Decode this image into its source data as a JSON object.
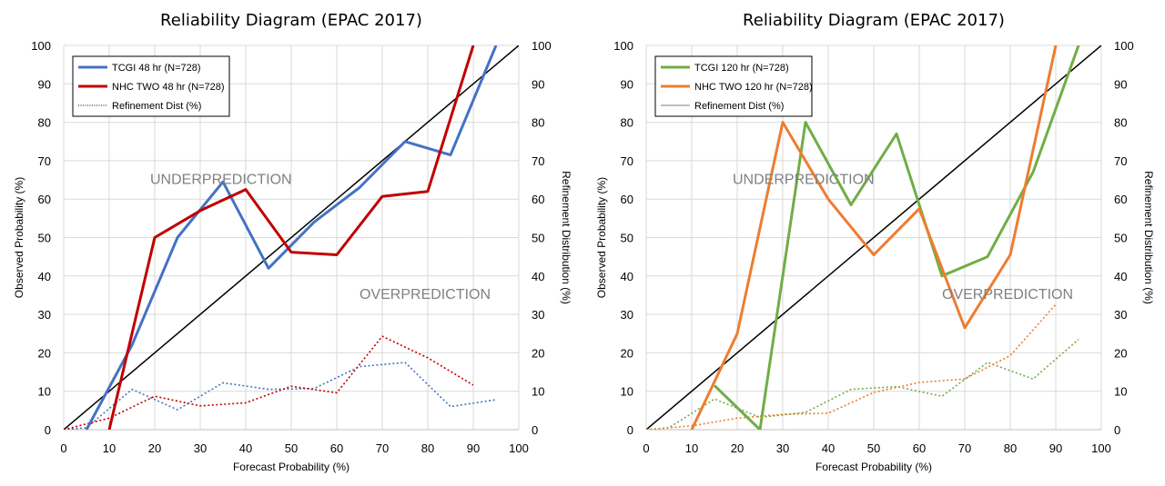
{
  "chart_data": [
    {
      "type": "line",
      "title": "Reliability Diagram (EPAC 2017)",
      "xlabel": "Forecast Probability (%)",
      "ylabel": "Observed Probability (%)",
      "y2label": "Refinement Distribution (%)",
      "xlim": [
        0,
        100
      ],
      "ylim": [
        0,
        100
      ],
      "y2lim": [
        0,
        100
      ],
      "grid": true,
      "legend_position": "top-left",
      "xticks": [
        "0",
        "10",
        "20",
        "30",
        "40",
        "50",
        "60",
        "70",
        "80",
        "90",
        "100"
      ],
      "yticks": [
        "0",
        "10",
        "20",
        "30",
        "40",
        "50",
        "60",
        "70",
        "80",
        "90",
        "100"
      ],
      "annotations": [
        {
          "text": "UNDERPREDICTION",
          "x": 19,
          "y": 64
        },
        {
          "text": "OVERPREDICTION",
          "x": 65,
          "y": 34
        }
      ],
      "diagonal": {
        "x": [
          0,
          100
        ],
        "y": [
          0,
          100
        ],
        "color": "#000000"
      },
      "series": [
        {
          "name": "TCGI 48 hr (N=728)",
          "color": "#4472C4",
          "style": "solid",
          "x": [
            5,
            15,
            25,
            35,
            45,
            55,
            65,
            75,
            85,
            95
          ],
          "y": [
            0,
            22,
            50,
            64.5,
            42,
            54,
            63,
            75,
            71.5,
            100
          ]
        },
        {
          "name": "NHC TWO 48 hr (N=728)",
          "color": "#C00000",
          "style": "solid",
          "x": [
            10,
            20,
            30,
            40,
            50,
            60,
            70,
            80,
            90
          ],
          "y": [
            0,
            50,
            57,
            62.5,
            46.2,
            45.5,
            60.7,
            62,
            100
          ]
        },
        {
          "name": "Refinement Dist (%)",
          "color": "#000000",
          "style": "dotted",
          "legend_only": true,
          "x": [],
          "y": []
        },
        {
          "name": "",
          "color": "#4472C4",
          "style": "dotted",
          "x": [
            0,
            5,
            15,
            25,
            35,
            45,
            55,
            65,
            75,
            85,
            95
          ],
          "y": [
            0,
            0.5,
            10.5,
            5.2,
            12.2,
            10.5,
            10.7,
            16.4,
            17.5,
            6,
            7.8
          ]
        },
        {
          "name": "",
          "color": "#C00000",
          "style": "dotted",
          "x": [
            0,
            10,
            20,
            30,
            40,
            50,
            60,
            70,
            80,
            90
          ],
          "y": [
            0,
            3,
            8.7,
            6.2,
            7,
            11.3,
            9.6,
            24.3,
            18.7,
            11.6
          ]
        }
      ]
    },
    {
      "type": "line",
      "title": "Reliability Diagram (EPAC 2017)",
      "xlabel": "Forecast Probability (%)",
      "ylabel": "Observed Probability (%)",
      "y2label": "Refinement Distribution (%)",
      "xlim": [
        0,
        100
      ],
      "ylim": [
        0,
        100
      ],
      "y2lim": [
        0,
        100
      ],
      "grid": true,
      "legend_position": "top-left",
      "xticks": [
        "0",
        "10",
        "20",
        "30",
        "40",
        "50",
        "60",
        "70",
        "80",
        "90",
        "100"
      ],
      "yticks": [
        "0",
        "10",
        "20",
        "30",
        "40",
        "50",
        "60",
        "70",
        "80",
        "90",
        "100"
      ],
      "annotations": [
        {
          "text": "UNDERPREDICTION",
          "x": 19,
          "y": 64
        },
        {
          "text": "OVERPREDICTION",
          "x": 65,
          "y": 34
        }
      ],
      "diagonal": {
        "x": [
          0,
          100
        ],
        "y": [
          0,
          100
        ],
        "color": "#000000"
      },
      "series": [
        {
          "name": "TCGI 120 hr (N=728)",
          "color": "#70AD47",
          "style": "solid",
          "x": [
            15,
            25,
            35,
            45,
            55,
            65,
            75,
            85,
            95
          ],
          "y": [
            11.5,
            0,
            80,
            58.5,
            77,
            40,
            45,
            67,
            100
          ]
        },
        {
          "name": "NHC TWO 120 hr (N=728)",
          "color": "#ED7D31",
          "style": "solid",
          "x": [
            10,
            20,
            30,
            40,
            50,
            60,
            70,
            80,
            90
          ],
          "y": [
            0,
            25,
            80,
            60,
            45.5,
            57.5,
            26.5,
            45.5,
            100
          ]
        },
        {
          "name": "Refinement Dist (%)",
          "color": "#7f7f7f",
          "style": "solid-thin",
          "legend_only": true,
          "x": [],
          "y": []
        },
        {
          "name": "",
          "color": "#70AD47",
          "style": "dotted",
          "x": [
            0,
            5,
            15,
            25,
            35,
            45,
            55,
            65,
            75,
            85,
            95
          ],
          "y": [
            0,
            0.5,
            8,
            3.2,
            4.5,
            10.5,
            11.2,
            8.7,
            17.5,
            13.2,
            23.5
          ]
        },
        {
          "name": "",
          "color": "#ED7D31",
          "style": "dotted",
          "x": [
            0,
            10,
            20,
            30,
            40,
            50,
            60,
            70,
            80,
            90
          ],
          "y": [
            0,
            1,
            3,
            4,
            4.3,
            9.7,
            12.3,
            13.2,
            19.3,
            32.6
          ]
        }
      ]
    }
  ]
}
